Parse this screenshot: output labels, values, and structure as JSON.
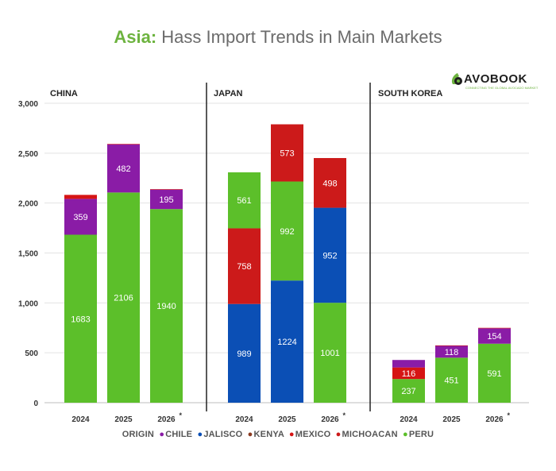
{
  "title": {
    "region": "Asia:",
    "text": "Hass Import Trends in Main Markets"
  },
  "logo": {
    "name": "AVOBOOK",
    "tagline": "CONNECTING THE GLOBAL AVOCADO MARKET"
  },
  "colors": {
    "CHILE": "#8a1ca6",
    "JALISCO": "#0b4fb5",
    "KENYA": "#8b3a1f",
    "MEXICO": "#d61414",
    "MICHOACAN": "#cc1a1a",
    "PERU": "#5cbf2a"
  },
  "legend": {
    "label": "ORIGIN",
    "items": [
      "CHILE",
      "JALISCO",
      "KENYA",
      "MEXICO",
      "MICHOACAN",
      "PERU"
    ]
  },
  "chart_data": {
    "type": "bar",
    "stacked": true,
    "ylim": [
      0,
      3000
    ],
    "yticks": [
      0,
      500,
      1000,
      1500,
      2000,
      2500,
      3000
    ],
    "ytick_labels": [
      "0",
      "500",
      "1,000",
      "1,500",
      "2,000",
      "2,500",
      "3,000"
    ],
    "categories": [
      "2024",
      "2025",
      "2026"
    ],
    "category_markers": [
      "",
      "",
      "*"
    ],
    "grid": true,
    "legend_position": "bottom",
    "panels": [
      {
        "name": "CHINA",
        "bars": [
          {
            "year": "2024",
            "segments": [
              {
                "origin": "PERU",
                "value": 1683,
                "label": "1683"
              },
              {
                "origin": "CHILE",
                "value": 359,
                "label": "359"
              },
              {
                "origin": "MEXICO",
                "value": 40,
                "label": ""
              }
            ]
          },
          {
            "year": "2025",
            "segments": [
              {
                "origin": "PERU",
                "value": 2106,
                "label": "2106"
              },
              {
                "origin": "CHILE",
                "value": 482,
                "label": "482"
              },
              {
                "origin": "MEXICO",
                "value": 5,
                "label": ""
              }
            ]
          },
          {
            "year": "2026",
            "segments": [
              {
                "origin": "PERU",
                "value": 1940,
                "label": "1940"
              },
              {
                "origin": "CHILE",
                "value": 195,
                "label": "195"
              },
              {
                "origin": "MEXICO",
                "value": 5,
                "label": ""
              }
            ]
          }
        ]
      },
      {
        "name": "JAPAN",
        "bars": [
          {
            "year": "2024",
            "segments": [
              {
                "origin": "JALISCO",
                "value": 989,
                "label": "989"
              },
              {
                "origin": "MICHOACAN",
                "value": 758,
                "label": "758"
              },
              {
                "origin": "PERU",
                "value": 561,
                "label": "561"
              }
            ]
          },
          {
            "year": "2025",
            "segments": [
              {
                "origin": "JALISCO",
                "value": 1224,
                "label": "1224"
              },
              {
                "origin": "PERU",
                "value": 992,
                "label": "992"
              },
              {
                "origin": "MICHOACAN",
                "value": 573,
                "label": "573"
              }
            ]
          },
          {
            "year": "2026",
            "segments": [
              {
                "origin": "PERU",
                "value": 1001,
                "label": "1001"
              },
              {
                "origin": "JALISCO",
                "value": 952,
                "label": "952"
              },
              {
                "origin": "MICHOACAN",
                "value": 498,
                "label": "498"
              }
            ]
          }
        ]
      },
      {
        "name": "SOUTH KOREA",
        "bars": [
          {
            "year": "2024",
            "segments": [
              {
                "origin": "PERU",
                "value": 237,
                "label": "237"
              },
              {
                "origin": "MEXICO",
                "value": 116,
                "label": "116"
              },
              {
                "origin": "CHILE",
                "value": 75,
                "label": ""
              }
            ]
          },
          {
            "year": "2025",
            "segments": [
              {
                "origin": "PERU",
                "value": 451,
                "label": "451"
              },
              {
                "origin": "CHILE",
                "value": 118,
                "label": "118"
              },
              {
                "origin": "MEXICO",
                "value": 5,
                "label": ""
              }
            ]
          },
          {
            "year": "2026",
            "segments": [
              {
                "origin": "PERU",
                "value": 591,
                "label": "591"
              },
              {
                "origin": "CHILE",
                "value": 154,
                "label": "154"
              },
              {
                "origin": "MEXICO",
                "value": 5,
                "label": ""
              }
            ]
          }
        ]
      }
    ]
  }
}
